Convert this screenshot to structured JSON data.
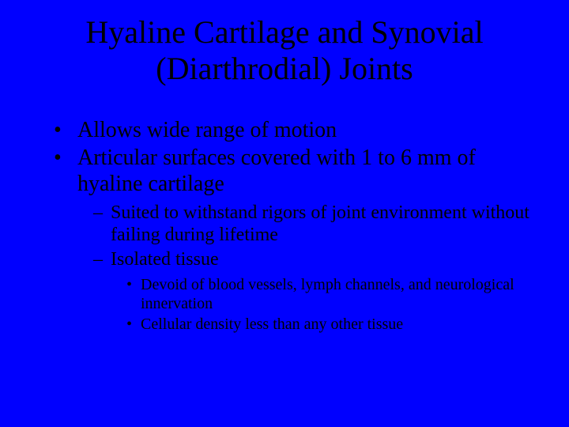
{
  "colors": {
    "background": "#0000ff",
    "text": "#000000"
  },
  "typography": {
    "family": "Times New Roman",
    "title_fontsize_pt": 40,
    "level1_fontsize_pt": 28,
    "level2_fontsize_pt": 24,
    "level3_fontsize_pt": 20
  },
  "title": "Hyaline Cartilage and Synovial (Diarthrodial) Joints",
  "bullets": {
    "b1": "Allows wide range of motion",
    "b2": "Articular surfaces covered with 1 to 6 mm of hyaline cartilage",
    "b2_1": "Suited to withstand rigors of joint environment without failing during lifetime",
    "b2_2": "Isolated tissue",
    "b2_2_1": "Devoid of blood vessels, lymph channels, and neurological innervation",
    "b2_2_2": "Cellular density less than any other tissue"
  }
}
